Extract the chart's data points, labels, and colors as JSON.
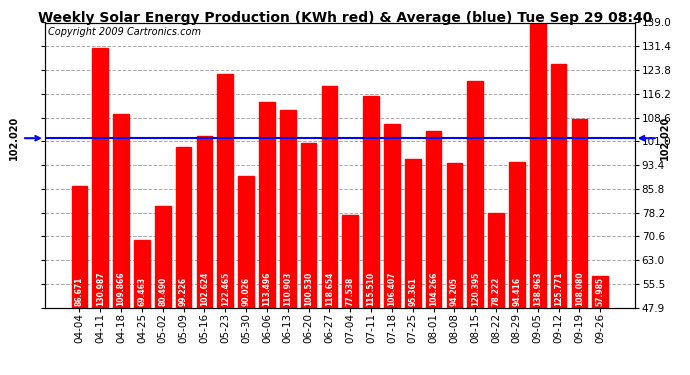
{
  "title": "Weekly Solar Energy Production (KWh red) & Average (blue) Tue Sep 29 08:40",
  "copyright": "Copyright 2009 Cartronics.com",
  "average": 102.02,
  "average_label": "102.020",
  "categories": [
    "04-04",
    "04-11",
    "04-18",
    "04-25",
    "05-02",
    "05-09",
    "05-16",
    "05-23",
    "05-30",
    "06-06",
    "06-13",
    "06-20",
    "06-27",
    "07-04",
    "07-11",
    "07-18",
    "07-25",
    "08-01",
    "08-08",
    "08-15",
    "08-22",
    "08-29",
    "09-05",
    "09-12",
    "09-19",
    "09-26"
  ],
  "values": [
    86.671,
    130.987,
    109.866,
    69.463,
    80.49,
    99.226,
    102.624,
    122.465,
    90.026,
    113.496,
    110.903,
    100.53,
    118.654,
    77.538,
    115.51,
    106.407,
    95.361,
    104.266,
    94.205,
    120.395,
    78.222,
    94.416,
    138.963,
    125.771,
    108.08,
    57.985
  ],
  "bar_color": "#ff0000",
  "avg_line_color": "#0000ff",
  "background_color": "#ffffff",
  "grid_color": "#aaaaaa",
  "ylim_min": 47.9,
  "ylim_max": 139.0,
  "yticks": [
    47.9,
    55.5,
    63.0,
    70.6,
    78.2,
    85.8,
    93.4,
    101.0,
    108.6,
    116.2,
    123.8,
    131.4,
    139.0
  ],
  "title_fontsize": 10,
  "tick_fontsize": 7.5,
  "copyright_fontsize": 7,
  "bar_label_fontsize": 5.5
}
